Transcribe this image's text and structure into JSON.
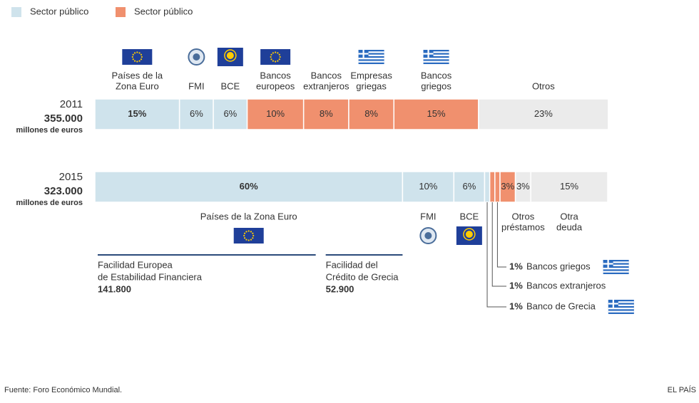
{
  "chart_data": {
    "type": "stacked-bar",
    "legend": [
      {
        "name": "Sector público",
        "color": "#cfe3ec"
      },
      {
        "name": "Sector público",
        "color": "#f0906e"
      }
    ],
    "bars": [
      {
        "year": "2011",
        "total": 355000,
        "total_label": "355.000",
        "unit": "millones de euros",
        "segments": [
          {
            "label": [
              "Países de la",
              "Zona Euro"
            ],
            "value": 15,
            "value_label": "15%",
            "color": "#cfe3ec"
          },
          {
            "label": [
              "FMI"
            ],
            "value": 6,
            "value_label": "6%",
            "color": "#cfe3ec"
          },
          {
            "label": [
              "BCE"
            ],
            "value": 6,
            "value_label": "6%",
            "color": "#cfe3ec"
          },
          {
            "label": [
              "Bancos",
              "europeos"
            ],
            "value": 10,
            "value_label": "10%",
            "color": "#f0906e"
          },
          {
            "label": [
              "Bancos",
              "extranjeros"
            ],
            "value": 8,
            "value_label": "8%",
            "color": "#f0906e"
          },
          {
            "label": [
              "Empresas",
              "griegas"
            ],
            "value": 8,
            "value_label": "8%",
            "color": "#f0906e"
          },
          {
            "label": [
              "Bancos",
              "griegos"
            ],
            "value": 15,
            "value_label": "15%",
            "color": "#f0906e"
          },
          {
            "label": [
              "Otros"
            ],
            "value": 23,
            "value_label": "23%",
            "color": "#ebebeb"
          }
        ]
      },
      {
        "year": "2015",
        "total": 323000,
        "total_label": "323.000",
        "unit": "millones de euros",
        "segments": [
          {
            "label": [
              "Países de la Zona Euro"
            ],
            "value": 60,
            "value_label": "60%",
            "color": "#cfe3ec"
          },
          {
            "label": [
              "FMI"
            ],
            "value": 10,
            "value_label": "10%",
            "color": "#cfe3ec"
          },
          {
            "label": [
              "BCE"
            ],
            "value": 6,
            "value_label": "6%",
            "color": "#cfe3ec"
          },
          {
            "label": [
              "Banco de Grecia"
            ],
            "value": 1,
            "value_label": "1%",
            "color": "#cfe3ec"
          },
          {
            "label": [
              "Bancos extranjeros"
            ],
            "value": 1,
            "value_label": "1%",
            "color": "#f0906e"
          },
          {
            "label": [
              "Bancos griegos"
            ],
            "value": 1,
            "value_label": "1%",
            "color": "#f0906e"
          },
          {
            "value": 3,
            "value_label": "3%",
            "color": "#f0906e"
          },
          {
            "label": [
              "Otros",
              "préstamos"
            ],
            "value": 3,
            "value_label": "3%",
            "color": "#ebebeb"
          },
          {
            "label": [
              "Otra",
              "deuda"
            ],
            "value": 15,
            "value_label": "15%",
            "color": "#ebebeb"
          }
        ],
        "facilities": [
          {
            "label": [
              "Facilidad Europea",
              "de Estabilidad Financiera"
            ],
            "value": 141800,
            "value_label": "141.800"
          },
          {
            "label": [
              "Facilidad del",
              "Crédito de Grecia"
            ],
            "value": 52900,
            "value_label": "52.900"
          }
        ]
      }
    ],
    "source": "Fuente: Foro Económico Mundial.",
    "credit": "EL PAÍS"
  }
}
